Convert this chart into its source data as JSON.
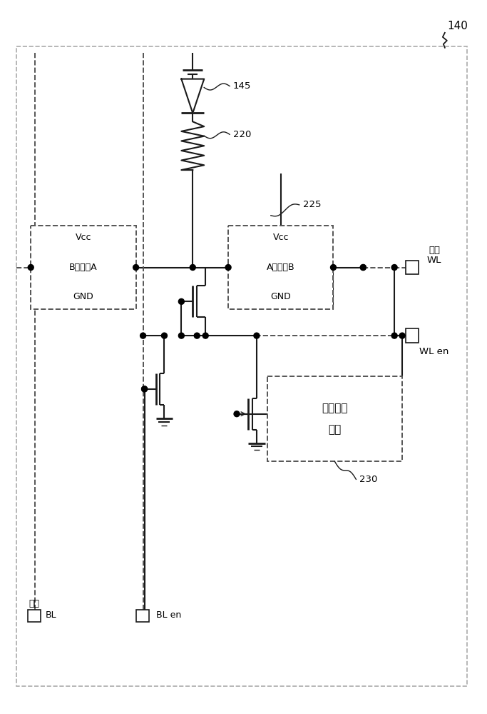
{
  "bg_color": "#ffffff",
  "lc": "#1a1a1a",
  "dc": "#555555",
  "label_140": "140",
  "label_145": "145",
  "label_220": "220",
  "label_225": "225",
  "label_230": "230",
  "label_WL_1": "共用",
  "label_WL_2": "WL",
  "label_WLen": "WL en",
  "label_BL_1": "共用",
  "label_BL_2": "BL",
  "label_BLen": "BL en",
  "buf_A_vcc": "Vcc",
  "buf_A_mid": "B缓冲器A",
  "buf_A_gnd": "GND",
  "buf_B_vcc": "Vcc",
  "buf_B_mid": "A缓冲器B",
  "buf_B_gnd": "GND",
  "fb_line1": "反馈抑制",
  "fb_line2": "电路"
}
